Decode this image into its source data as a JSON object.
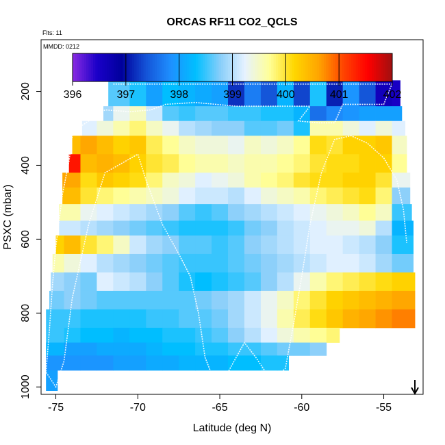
{
  "chart_data": {
    "type": "heatmap",
    "title": "ORCAS RF11 CO2_QCLS",
    "subtitle": "Flts: 11",
    "annotation": "MMDD: 0212",
    "xlabel": "Latitude (deg N)",
    "ylabel": "PSXC (mbar)",
    "xlim": [
      -75.9,
      -52.6
    ],
    "ylim": [
      1020,
      60
    ],
    "x_ticks": [
      -75,
      -70,
      -65,
      -60,
      -55
    ],
    "y_ticks": [
      200,
      400,
      600,
      800,
      1000
    ],
    "colorbar": {
      "range": [
        396,
        402
      ],
      "ticks": [
        396,
        397,
        398,
        399,
        400,
        401,
        402
      ],
      "colors": [
        "#8a2be2",
        "#1a00c8",
        "#00009c",
        "#1454d8",
        "#1e90ff",
        "#00bfff",
        "#87cefa",
        "#e6f2ff",
        "#ffff99",
        "#ffd700",
        "#ffa500",
        "#ff4500",
        "#ff0000",
        "#a01010"
      ]
    },
    "marker": {
      "type": "arrow-down",
      "latitude": -53.1
    },
    "bands": [
      {
        "p_top": 170,
        "p_bot": 240,
        "lat_min": -71.8,
        "lat_max": -54.0,
        "lat_values": [
          -71,
          -70,
          -69,
          -68,
          -67,
          -66,
          -65,
          -64,
          -63,
          -62,
          -61,
          -60,
          -59,
          -58,
          -57,
          -56,
          -55,
          -54
        ],
        "co2": [
          398.6,
          398.4,
          398.0,
          398.3,
          398.2,
          398.1,
          398.0,
          397.2,
          397.7,
          397.4,
          398.2,
          397.3,
          398.4,
          397.1,
          397.9,
          397.4,
          396.6,
          396.5
        ]
      },
      {
        "p_top": 240,
        "p_bot": 280,
        "lat_min": -72.1,
        "lat_max": -53.9,
        "lat_values": [
          -72,
          -71,
          -70,
          -69,
          -68,
          -67,
          -66,
          -65,
          -64,
          -63,
          -62,
          -61,
          -60,
          -59,
          -58,
          -57,
          -56,
          -55,
          -54
        ],
        "co2": [
          398.9,
          399.3,
          399.5,
          399.1,
          398.6,
          398.5,
          398.6,
          398.6,
          398.5,
          398.5,
          398.4,
          398.4,
          398.2,
          397.6,
          397.8,
          397.9,
          398.0,
          398.0,
          398.0
        ]
      },
      {
        "p_top": 280,
        "p_bot": 320,
        "lat_min": -73.4,
        "lat_max": -53.7,
        "lat_values": [
          -73,
          -72,
          -71,
          -70,
          -69,
          -68,
          -67,
          -66,
          -65,
          -64,
          -63,
          -62,
          -61,
          -60,
          -59,
          -58,
          -57,
          -56,
          -55,
          -54
        ],
        "co2": [
          399.2,
          399.4,
          399.6,
          399.8,
          399.5,
          399.3,
          399.0,
          398.9,
          398.8,
          398.8,
          398.6,
          398.6,
          398.7,
          398.4,
          399.6,
          399.6,
          399.4,
          399.2,
          399.4,
          399.2
        ]
      },
      {
        "p_top": 320,
        "p_bot": 370,
        "lat_min": -74.0,
        "lat_max": -53.6,
        "lat_values": [
          -74,
          -73,
          -72,
          -71,
          -70,
          -69,
          -68,
          -67,
          -66,
          -65,
          -64,
          -63,
          -62,
          -61,
          -60,
          -59,
          -58,
          -57,
          -56,
          -55,
          -54
        ],
        "co2": [
          400.4,
          400.6,
          400.4,
          400.2,
          400.3,
          399.9,
          399.7,
          399.5,
          399.4,
          399.4,
          399.3,
          399.5,
          399.4,
          399.5,
          399.7,
          400.1,
          400.0,
          400.2,
          400.2,
          400.3,
          399.5
        ]
      },
      {
        "p_top": 370,
        "p_bot": 420,
        "lat_min": -74.2,
        "lat_max": -53.6,
        "lat_values": [
          -74,
          -73,
          -72,
          -71,
          -70,
          -69,
          -68,
          -67,
          -66,
          -65,
          -64,
          -63,
          -62,
          -61,
          -60,
          -59,
          -58,
          -57,
          -56,
          -55,
          -54
        ],
        "co2": [
          401.4,
          400.4,
          400.5,
          400.4,
          400.2,
          400.0,
          399.9,
          399.7,
          399.6,
          399.6,
          399.5,
          399.6,
          399.6,
          399.7,
          399.8,
          400.0,
          400.1,
          400.1,
          400.2,
          400.2,
          399.7
        ]
      },
      {
        "p_top": 420,
        "p_bot": 460,
        "lat_min": -74.6,
        "lat_max": -53.4,
        "lat_values": [
          -74,
          -73,
          -72,
          -71,
          -70,
          -69,
          -68,
          -67,
          -66,
          -65,
          -64,
          -63,
          -62,
          -61,
          -60,
          -59,
          -58,
          -57,
          -56,
          -55,
          -54
        ],
        "co2": [
          400.6,
          400.1,
          400.3,
          400.2,
          400.1,
          399.8,
          399.5,
          399.4,
          399.2,
          399.3,
          399.4,
          399.6,
          399.7,
          399.8,
          400.0,
          400.1,
          400.1,
          400.2,
          400.2,
          400.0,
          399.3
        ]
      },
      {
        "p_top": 460,
        "p_bot": 505,
        "lat_min": -74.6,
        "lat_max": -53.4,
        "lat_values": [
          -74,
          -73,
          -72,
          -71,
          -70,
          -69,
          -68,
          -67,
          -66,
          -65,
          -64,
          -63,
          -62,
          -61,
          -60,
          -59,
          -58,
          -57,
          -56,
          -55,
          -54
        ],
        "co2": [
          400.4,
          400.0,
          399.8,
          399.7,
          399.6,
          399.5,
          399.4,
          399.2,
          399.1,
          399.1,
          399.0,
          399.2,
          399.4,
          399.5,
          399.6,
          399.8,
          399.9,
          400.0,
          400.1,
          399.8,
          398.8
        ]
      },
      {
        "p_top": 505,
        "p_bot": 550,
        "lat_min": -74.8,
        "lat_max": -53.3,
        "lat_values": [
          -74,
          -73,
          -72,
          -71,
          -70,
          -69,
          -68,
          -67,
          -66,
          -65,
          -64,
          -63,
          -62,
          -61,
          -60,
          -59,
          -58,
          -57,
          -56,
          -55,
          -54
        ],
        "co2": [
          399.6,
          399.3,
          399.2,
          399.1,
          399.0,
          398.9,
          398.8,
          398.6,
          398.5,
          398.6,
          398.8,
          398.9,
          399.0,
          399.1,
          399.2,
          399.3,
          399.4,
          399.5,
          399.7,
          399.5,
          398.5
        ]
      },
      {
        "p_top": 550,
        "p_bot": 590,
        "lat_min": -74.8,
        "lat_max": -53.2,
        "lat_values": [
          -74,
          -73,
          -72,
          -71,
          -70,
          -69,
          -68,
          -67,
          -66,
          -65,
          -64,
          -63,
          -62,
          -61,
          -60,
          -59,
          -58,
          -57,
          -56,
          -55,
          -54
        ],
        "co2": [
          399.1,
          399.0,
          398.9,
          398.8,
          398.7,
          398.6,
          398.5,
          398.4,
          398.4,
          398.4,
          398.5,
          398.7,
          398.8,
          399.0,
          399.1,
          399.2,
          399.3,
          399.3,
          399.4,
          399.0,
          398.2
        ]
      },
      {
        "p_top": 590,
        "p_bot": 640,
        "lat_min": -75.0,
        "lat_max": -53.2,
        "lat_values": [
          -75,
          -74,
          -73,
          -72,
          -71,
          -70,
          -69,
          -68,
          -67,
          -66,
          -65,
          -64,
          -63,
          -62,
          -61,
          -60,
          -59,
          -58,
          -57,
          -56,
          -55,
          -54
        ],
        "co2": [
          400.2,
          400.4,
          400.0,
          399.8,
          399.5,
          399.1,
          398.9,
          398.8,
          398.6,
          398.6,
          398.5,
          398.6,
          398.8,
          398.9,
          399.0,
          399.1,
          399.2,
          399.2,
          399.1,
          399.0,
          398.8,
          398.4
        ]
      },
      {
        "p_top": 640,
        "p_bot": 690,
        "lat_min": -75.2,
        "lat_max": -53.2,
        "lat_values": [
          -75,
          -74,
          -73,
          -72,
          -71,
          -70,
          -69,
          -68,
          -67,
          -66,
          -65,
          -64,
          -63,
          -62,
          -61,
          -60,
          -59,
          -58,
          -57,
          -56,
          -55,
          -54
        ],
        "co2": [
          399.6,
          399.4,
          399.2,
          399.0,
          398.9,
          398.8,
          398.7,
          398.6,
          398.5,
          398.5,
          398.5,
          398.6,
          398.7,
          398.8,
          398.9,
          399.0,
          399.1,
          399.2,
          399.2,
          399.1,
          398.9,
          398.7
        ]
      },
      {
        "p_top": 690,
        "p_bot": 740,
        "lat_min": -75.3,
        "lat_max": -53.1,
        "lat_values": [
          -75,
          -74,
          -73,
          -72,
          -71,
          -70,
          -69,
          -68,
          -67,
          -66,
          -65,
          -64,
          -63,
          -62,
          -61,
          -60,
          -59,
          -58,
          -57,
          -56,
          -55,
          -54
        ],
        "co2": [
          398.9,
          398.8,
          398.7,
          399.2,
          399.1,
          399.0,
          398.8,
          398.6,
          398.4,
          398.3,
          398.4,
          398.5,
          398.6,
          398.8,
          399.0,
          399.3,
          399.6,
          399.8,
          399.9,
          400.0,
          400.1,
          400.2
        ]
      },
      {
        "p_top": 740,
        "p_bot": 790,
        "lat_min": -75.4,
        "lat_max": -53.1,
        "lat_values": [
          -75,
          -74,
          -73,
          -72,
          -71,
          -70,
          -69,
          -68,
          -67,
          -66,
          -65,
          -64,
          -63,
          -62,
          -61,
          -60,
          -59,
          -58,
          -57,
          -56,
          -55,
          -54
        ],
        "co2": [
          398.7,
          398.8,
          398.7,
          398.6,
          398.6,
          398.6,
          398.6,
          398.6,
          398.6,
          398.7,
          398.8,
          398.9,
          399.1,
          399.3,
          399.5,
          399.8,
          400.0,
          400.2,
          400.3,
          400.4,
          400.5,
          400.6
        ]
      },
      {
        "p_top": 790,
        "p_bot": 840,
        "lat_min": -75.6,
        "lat_max": -53.1,
        "lat_values": [
          -75,
          -74,
          -73,
          -72,
          -71,
          -70,
          -69,
          -68,
          -67,
          -66,
          -65,
          -64,
          -63,
          -62,
          -61,
          -60,
          -59,
          -58,
          -57,
          -56,
          -55,
          -54
        ],
        "co2": [
          398.5,
          398.5,
          398.4,
          398.4,
          398.4,
          398.4,
          398.5,
          398.5,
          398.6,
          398.6,
          398.7,
          398.9,
          399.1,
          399.3,
          399.6,
          399.9,
          400.1,
          400.3,
          400.5,
          400.6,
          400.7,
          400.8
        ]
      },
      {
        "p_top": 840,
        "p_bot": 880,
        "lat_min": -75.6,
        "lat_max": -57.7,
        "lat_values": [
          -75,
          -74,
          -73,
          -72,
          -71,
          -70,
          -69,
          -68,
          -67,
          -66,
          -65,
          -64,
          -63,
          -62,
          -61,
          -60,
          -59,
          -58
        ],
        "co2": [
          398.5,
          398.4,
          398.3,
          398.3,
          398.2,
          398.3,
          398.3,
          398.4,
          398.4,
          398.5,
          398.6,
          398.8,
          399.0,
          399.2,
          399.4,
          399.6,
          399.7,
          399.8
        ]
      },
      {
        "p_top": 880,
        "p_bot": 915,
        "lat_min": -75.6,
        "lat_max": -58.5,
        "lat_values": [
          -75,
          -74,
          -73,
          -72,
          -71,
          -70,
          -69,
          -68,
          -67,
          -66,
          -65,
          -64,
          -63,
          -62,
          -61,
          -60,
          -59
        ],
        "co2": [
          398.2,
          398.0,
          398.0,
          398.1,
          398.1,
          398.1,
          398.2,
          398.3,
          398.3,
          398.4,
          398.4,
          398.5,
          398.5,
          398.6,
          398.7,
          398.7,
          398.8
        ]
      },
      {
        "p_top": 915,
        "p_bot": 955,
        "lat_min": -75.6,
        "lat_max": -60.8,
        "lat_values": [
          -75,
          -74,
          -73,
          -72,
          -71,
          -70,
          -69,
          -68,
          -67,
          -66,
          -65,
          -64,
          -63,
          -62,
          -61
        ],
        "co2": [
          397.9,
          397.9,
          397.9,
          397.9,
          398.0,
          398.0,
          398.1,
          398.1,
          398.2,
          398.2,
          398.2,
          398.3,
          398.3,
          398.4,
          398.4
        ]
      },
      {
        "p_top": 955,
        "p_bot": 1010,
        "lat_min": -75.6,
        "lat_max": -74.9,
        "lat_values": [
          -75
        ],
        "co2": [
          398.0
        ]
      }
    ],
    "flight_track": [
      [
        -71.5,
        180
      ],
      [
        -54.5,
        180
      ],
      [
        -55.0,
        235
      ],
      [
        -57.5,
        235
      ],
      [
        -58.0,
        285
      ],
      [
        -59.0,
        285
      ],
      [
        -60.2,
        280
      ],
      [
        -59.5,
        240
      ],
      [
        -64.0,
        240
      ],
      [
        -66.5,
        230
      ],
      [
        -68.3,
        235
      ],
      [
        -69.2,
        250
      ],
      [
        -70.5,
        255
      ],
      [
        -72.0,
        250
      ],
      [
        -73.5,
        295
      ],
      [
        -74.0,
        320
      ],
      [
        -74.2,
        390
      ],
      [
        -74.6,
        480
      ],
      [
        -75.0,
        620
      ],
      [
        -75.2,
        720
      ],
      [
        -75.4,
        850
      ],
      [
        -75.6,
        960
      ],
      [
        -75.0,
        1000
      ],
      [
        -74.5,
        930
      ],
      [
        -74.0,
        760
      ],
      [
        -73.0,
        560
      ],
      [
        -72.0,
        420
      ],
      [
        -70.0,
        370
      ],
      [
        -69.5,
        440
      ],
      [
        -68.5,
        560
      ],
      [
        -67.5,
        640
      ],
      [
        -66.8,
        700
      ],
      [
        -66.3,
        800
      ],
      [
        -65.9,
        920
      ],
      [
        -65.5,
        965
      ],
      [
        -64.5,
        960
      ],
      [
        -63.5,
        880
      ],
      [
        -62.8,
        920
      ],
      [
        -62.2,
        960
      ],
      [
        -61.5,
        970
      ],
      [
        -61.0,
        950
      ],
      [
        -60.5,
        830
      ],
      [
        -60.0,
        700
      ],
      [
        -59.5,
        560
      ],
      [
        -58.8,
        420
      ],
      [
        -58.0,
        330
      ],
      [
        -57.0,
        320
      ],
      [
        -56.0,
        340
      ],
      [
        -55.0,
        380
      ],
      [
        -54.2,
        440
      ],
      [
        -53.8,
        520
      ],
      [
        -53.6,
        610
      ]
    ]
  }
}
